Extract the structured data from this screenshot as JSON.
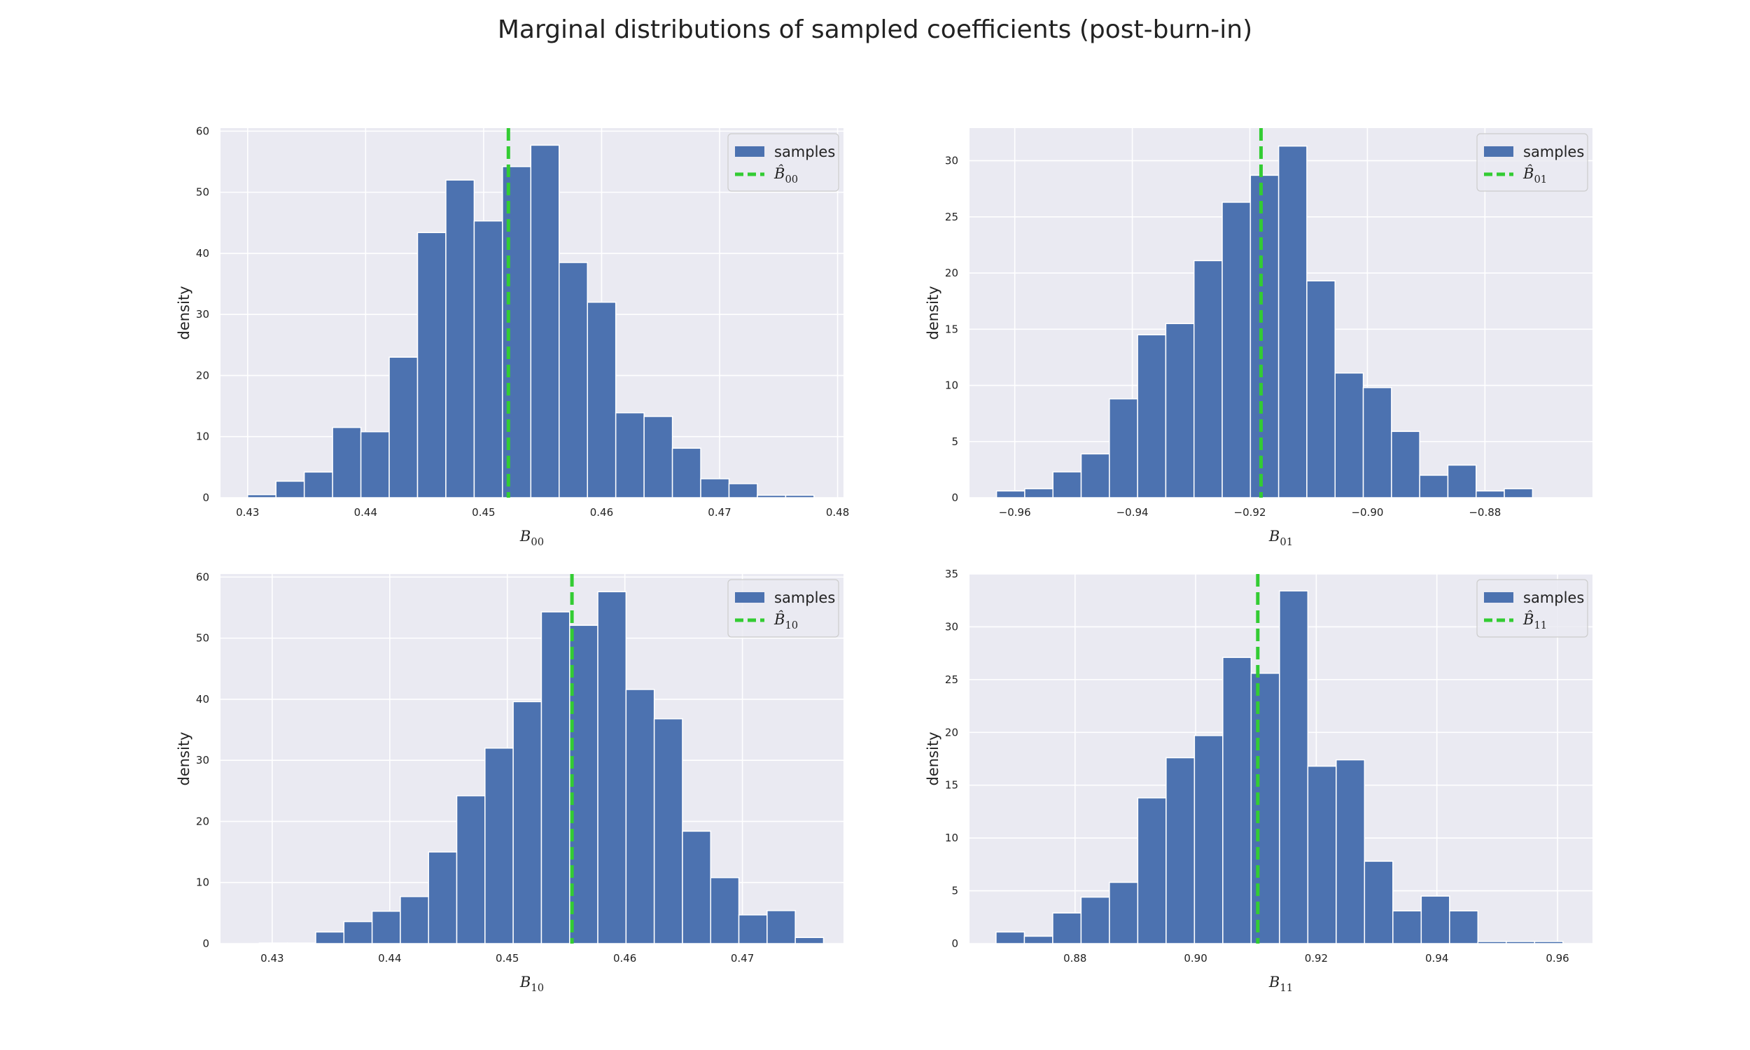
{
  "figure": {
    "title": "Marginal distributions of sampled coefficients (post-burn-in)"
  },
  "legend_samples_label": "samples",
  "colors": {
    "bar": "#4c72b0",
    "ref_line": "#33cc33",
    "panel_bg": "#eaeaf2",
    "grid": "#ffffff"
  },
  "chart_data": [
    {
      "type": "bar",
      "name_base": "B",
      "name_sub": "00",
      "xlabel": "B_00",
      "ylabel": "density",
      "legend": [
        "samples",
        "B̂_00"
      ],
      "legend_position": "top-right",
      "grid": true,
      "xlim": [
        0.4277,
        0.4805
      ],
      "ylim": [
        0,
        60.5
      ],
      "xticks": [
        0.43,
        0.44,
        0.45,
        0.46,
        0.47,
        0.48
      ],
      "xtick_labels": [
        "0.43",
        "0.44",
        "0.45",
        "0.46",
        "0.47",
        "0.48"
      ],
      "yticks": [
        0,
        10,
        20,
        30,
        40,
        50,
        60
      ],
      "ytick_labels": [
        "0",
        "10",
        "20",
        "30",
        "40",
        "50",
        "60"
      ],
      "bin_edges": [
        0.43,
        0.4324,
        0.4348,
        0.4372,
        0.4396,
        0.442,
        0.4444,
        0.4468,
        0.4492,
        0.4516,
        0.454,
        0.4564,
        0.4588,
        0.4612,
        0.4636,
        0.466,
        0.4684,
        0.4708,
        0.4732,
        0.4756,
        0.478
      ],
      "values": [
        0.5,
        2.7,
        4.2,
        11.5,
        10.8,
        23.0,
        43.4,
        52.0,
        45.3,
        54.2,
        57.7,
        38.5,
        32.0,
        13.9,
        13.3,
        8.1,
        3.1,
        2.3,
        0.4,
        0.4
      ],
      "ref_line_x": 0.4521
    },
    {
      "type": "bar",
      "name_base": "B",
      "name_sub": "01",
      "xlabel": "B_01",
      "ylabel": "density",
      "legend": [
        "samples",
        "B̂_01"
      ],
      "legend_position": "top-right",
      "grid": true,
      "xlim": [
        -0.9677,
        -0.8617
      ],
      "ylim": [
        0,
        32.9
      ],
      "xticks": [
        -0.96,
        -0.94,
        -0.92,
        -0.9,
        -0.88
      ],
      "xtick_labels": [
        "−0.96",
        "−0.94",
        "−0.92",
        "−0.90",
        "−0.88"
      ],
      "yticks": [
        0,
        5,
        10,
        15,
        20,
        25,
        30
      ],
      "ytick_labels": [
        "0",
        "5",
        "10",
        "15",
        "20",
        "25",
        "30"
      ],
      "bin_edges": [
        -0.9631,
        -0.9583,
        -0.9535,
        -0.9487,
        -0.9439,
        -0.9391,
        -0.9343,
        -0.9295,
        -0.9247,
        -0.9199,
        -0.9151,
        -0.9103,
        -0.9055,
        -0.9007,
        -0.8959,
        -0.8911,
        -0.8863,
        -0.8815,
        -0.8767,
        -0.8719,
        -0.8671
      ],
      "values": [
        0.6,
        0.8,
        2.3,
        3.9,
        8.8,
        14.5,
        15.5,
        21.1,
        26.3,
        28.7,
        31.3,
        19.3,
        11.1,
        9.8,
        5.9,
        2.0,
        2.9,
        0.6,
        0.8,
        0
      ],
      "ref_line_x": -0.9181
    },
    {
      "type": "bar",
      "name_base": "B",
      "name_sub": "10",
      "xlabel": "B_10",
      "ylabel": "density",
      "legend": [
        "samples",
        "B̂_10"
      ],
      "legend_position": "top-right",
      "grid": true,
      "xlim": [
        0.4256,
        0.4786
      ],
      "ylim": [
        0,
        60.5
      ],
      "xticks": [
        0.43,
        0.44,
        0.45,
        0.46,
        0.47
      ],
      "xtick_labels": [
        "0.43",
        "0.44",
        "0.45",
        "0.46",
        "0.47"
      ],
      "yticks": [
        0,
        10,
        20,
        30,
        40,
        50,
        60
      ],
      "ytick_labels": [
        "0",
        "10",
        "20",
        "30",
        "40",
        "50",
        "60"
      ],
      "bin_edges": [
        0.4289,
        0.4313,
        0.4337,
        0.4361,
        0.4385,
        0.4409,
        0.4433,
        0.4457,
        0.4481,
        0.4505,
        0.4529,
        0.4553,
        0.4577,
        0.4601,
        0.4625,
        0.4649,
        0.4673,
        0.4697,
        0.4721,
        0.4745,
        0.4769
      ],
      "values": [
        0.1,
        0.1,
        1.9,
        3.6,
        5.3,
        7.7,
        15.0,
        24.2,
        32.0,
        39.6,
        54.3,
        52.1,
        57.6,
        41.6,
        36.8,
        18.4,
        10.8,
        4.7,
        5.4,
        1.0
      ],
      "ref_line_x": 0.4555
    },
    {
      "type": "bar",
      "name_base": "B",
      "name_sub": "11",
      "xlabel": "B_11",
      "ylabel": "density",
      "legend": [
        "samples",
        "B̂_11"
      ],
      "legend_position": "top-right",
      "grid": true,
      "xlim": [
        0.8625,
        0.9658
      ],
      "ylim": [
        0,
        35
      ],
      "xticks": [
        0.88,
        0.9,
        0.92,
        0.94,
        0.96
      ],
      "xtick_labels": [
        "0.88",
        "0.90",
        "0.92",
        "0.94",
        "0.96"
      ],
      "yticks": [
        0,
        5,
        10,
        15,
        20,
        25,
        30,
        35
      ],
      "ytick_labels": [
        "0",
        "5",
        "10",
        "15",
        "20",
        "25",
        "30",
        "35"
      ],
      "bin_edges": [
        0.8669,
        0.8716,
        0.8763,
        0.881,
        0.8857,
        0.8904,
        0.8951,
        0.8998,
        0.9045,
        0.9092,
        0.9139,
        0.9186,
        0.9233,
        0.928,
        0.9327,
        0.9374,
        0.9421,
        0.9468,
        0.9515,
        0.9562,
        0.9609
      ],
      "values": [
        1.1,
        0.7,
        2.9,
        4.4,
        5.8,
        13.8,
        17.6,
        19.7,
        27.1,
        25.6,
        33.4,
        16.8,
        17.4,
        7.8,
        3.1,
        4.5,
        3.1,
        0.2,
        0.2,
        0.2
      ],
      "ref_line_x": 0.9103
    }
  ]
}
